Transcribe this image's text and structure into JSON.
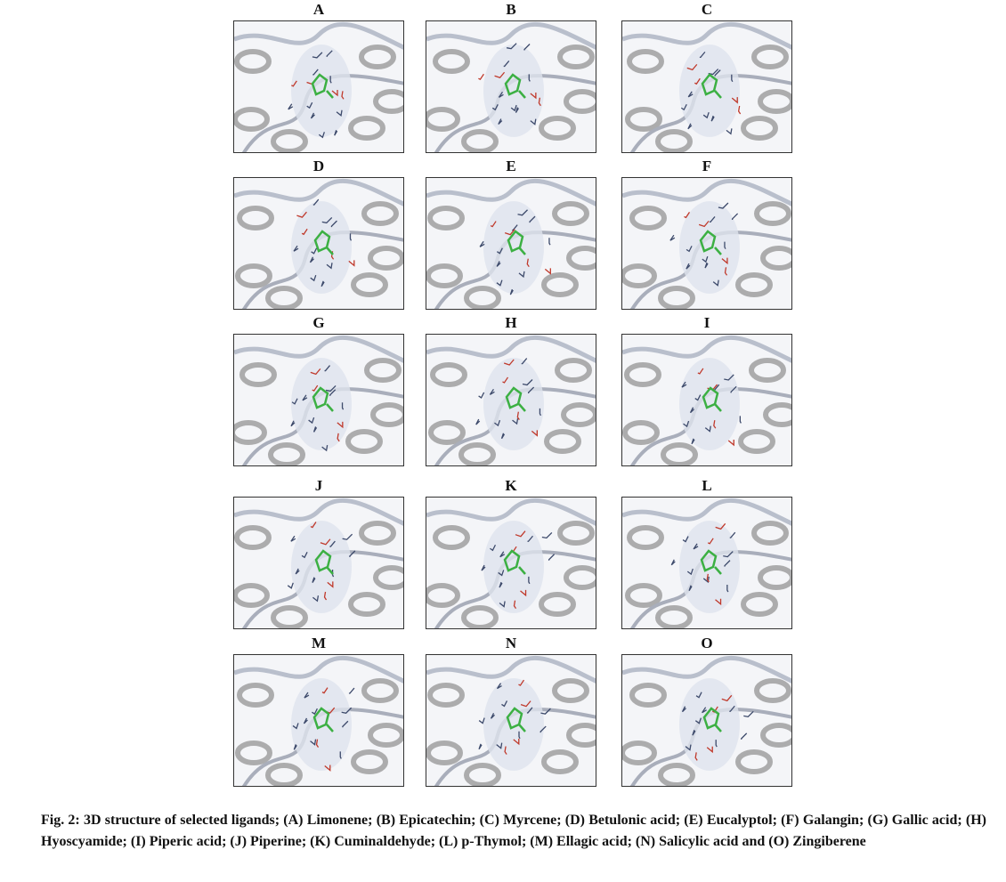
{
  "figure": {
    "panels": [
      {
        "label": "A"
      },
      {
        "label": "B"
      },
      {
        "label": "C"
      },
      {
        "label": "D"
      },
      {
        "label": "E"
      },
      {
        "label": "F"
      },
      {
        "label": "G"
      },
      {
        "label": "H"
      },
      {
        "label": "I"
      },
      {
        "label": "J"
      },
      {
        "label": "K"
      },
      {
        "label": "L"
      },
      {
        "label": "M"
      },
      {
        "label": "N"
      },
      {
        "label": "O"
      }
    ],
    "caption": "Fig. 2: 3D structure of selected ligands; (A) Limonene; (B) Epicatechin; (C) Myrcene; (D) Betulonic acid; (E) Eucalyptol; (F) Galangin; (G) Gallic acid; (H) Hyoscyamide; (I) Piperic acid; (J) Piperine; (K) Cuminaldehyde; (L) p-Thymol; (M) Ellagic acid; (N) Salicylic acid and (O) Zingiberene"
  }
}
